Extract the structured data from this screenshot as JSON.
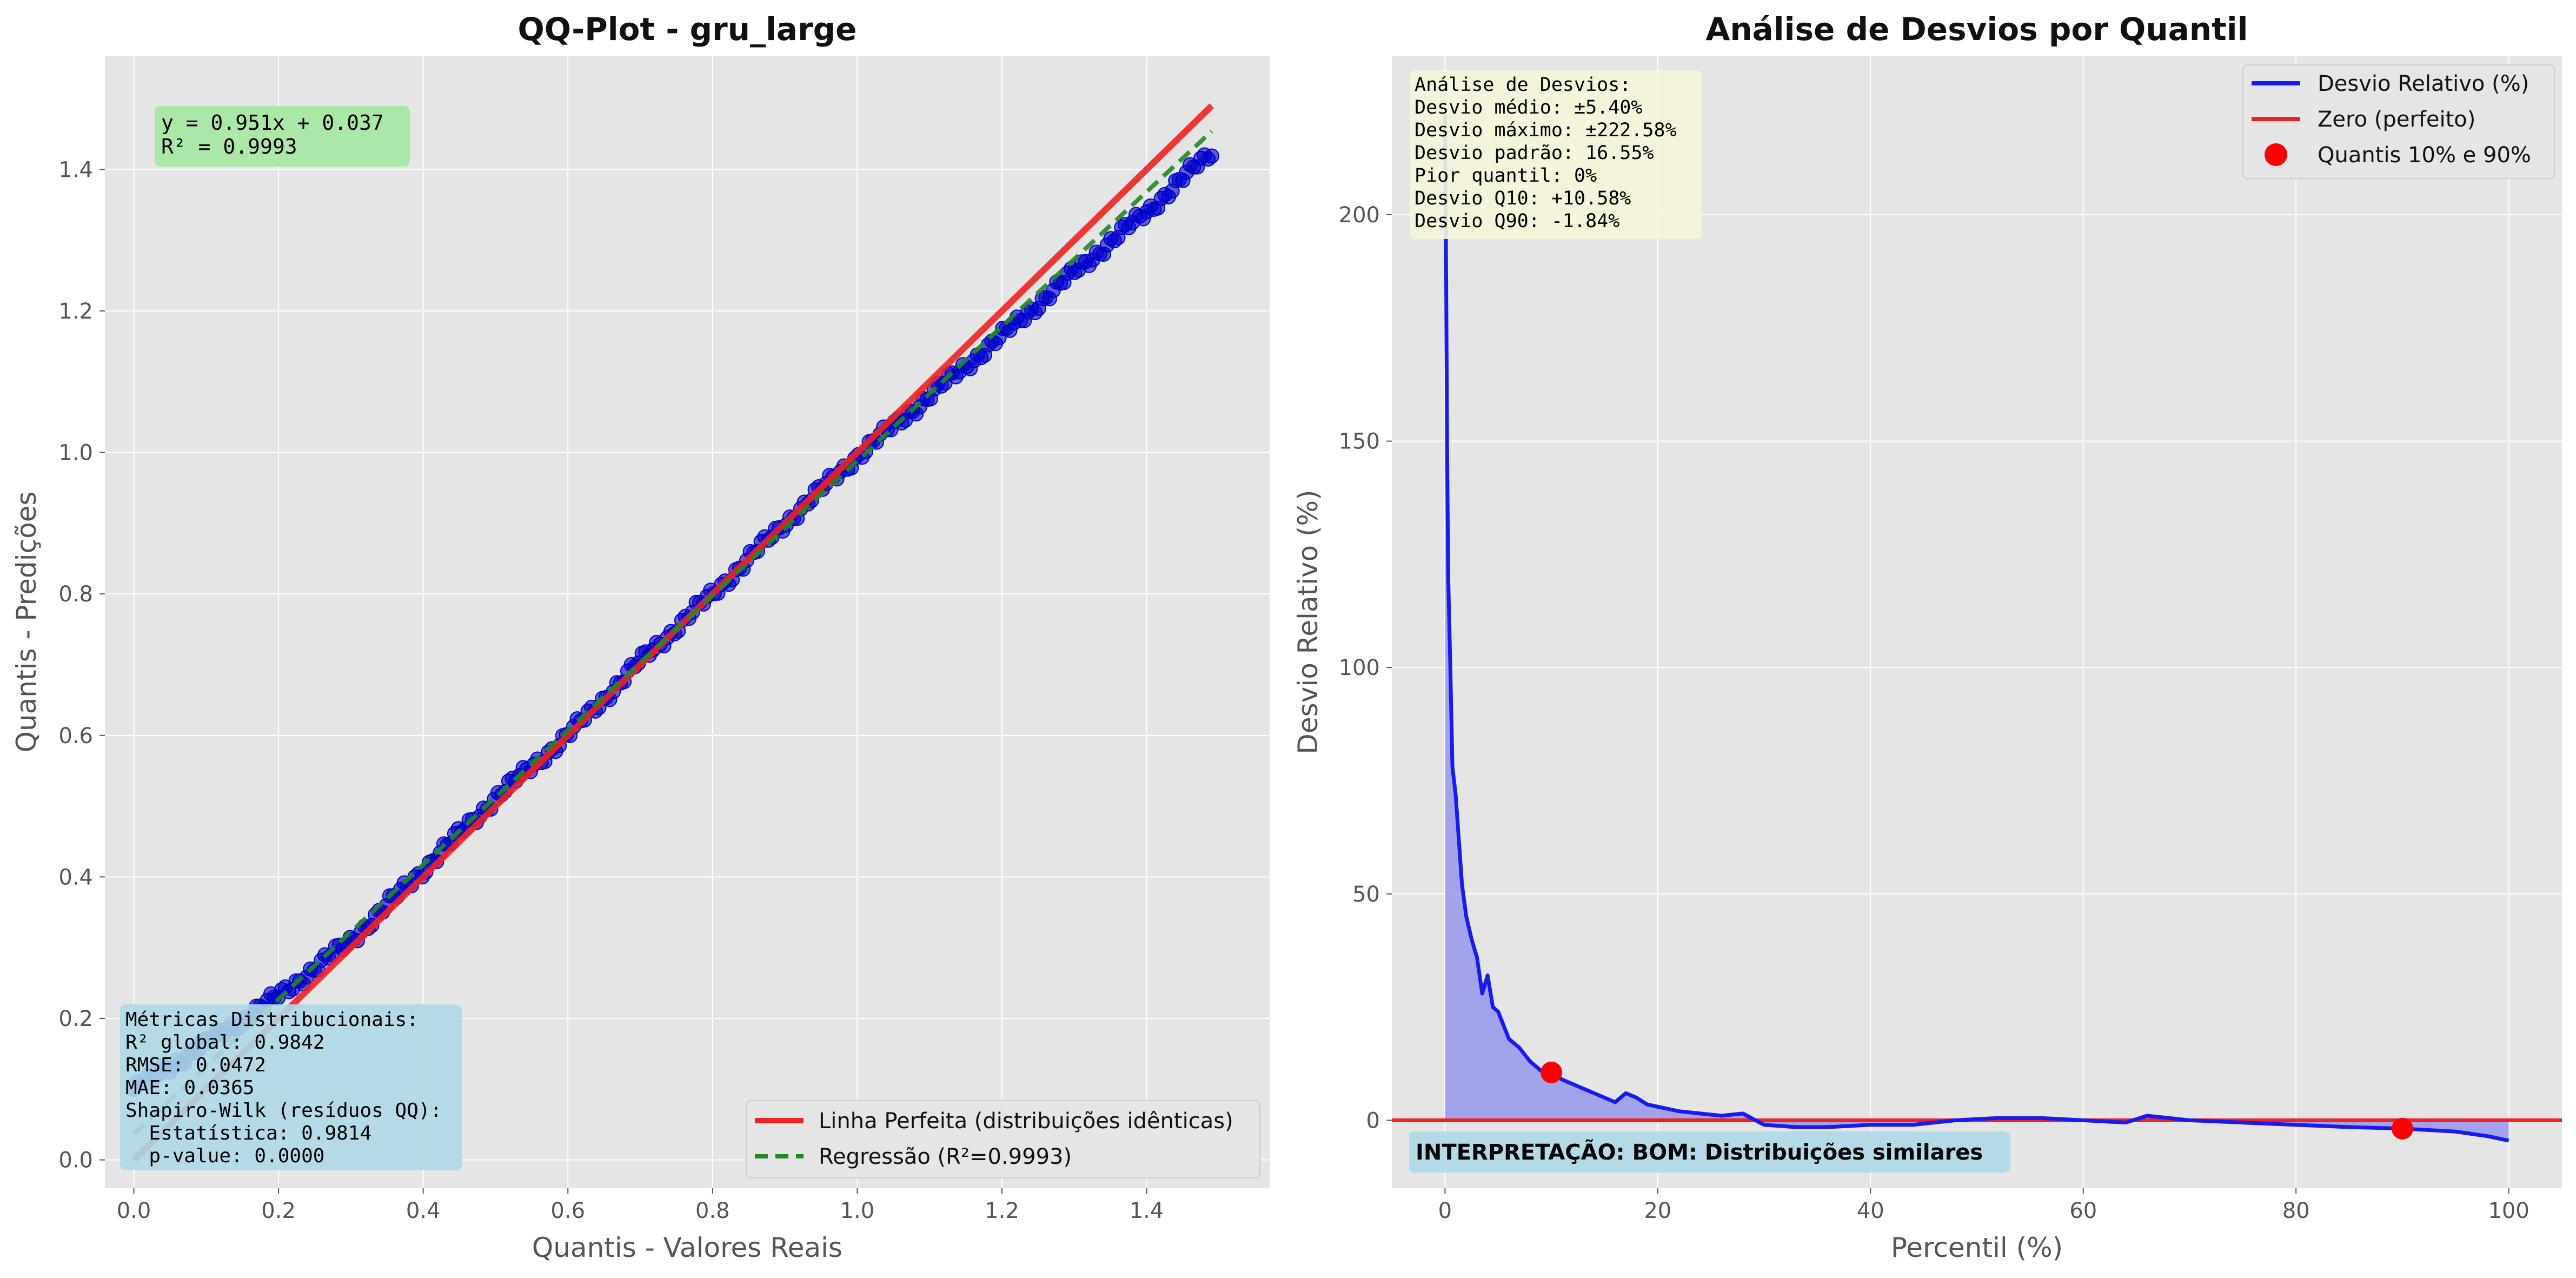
{
  "figure": {
    "background": "#ffffff",
    "axes_background": "#e5e5e5",
    "grid_color": "#ffffff"
  },
  "chart_data": [
    {
      "type": "scatter",
      "title": "QQ-Plot - gru_large",
      "xlabel": "Quantis - Valores Reais",
      "ylabel": "Quantis - Predições",
      "xlim": [
        -0.04,
        1.57
      ],
      "ylim": [
        -0.04,
        1.56
      ],
      "xticks": [
        "0.0",
        "0.2",
        "0.4",
        "0.6",
        "0.8",
        "1.0",
        "1.2",
        "1.4"
      ],
      "yticks": [
        "0.0",
        "0.2",
        "0.4",
        "0.6",
        "0.8",
        "1.0",
        "1.2",
        "1.4"
      ],
      "grid": true,
      "legend_position": "lower-right",
      "points": {
        "color": "#0000cc",
        "x_range": [
          0.0,
          1.49
        ],
        "note_curve": [
          [
            0.0,
            0.1
          ],
          [
            0.1,
            0.165
          ],
          [
            0.2,
            0.232
          ],
          [
            0.3,
            0.31
          ],
          [
            0.4,
            0.41
          ],
          [
            0.5,
            0.512
          ],
          [
            0.6,
            0.6
          ],
          [
            0.7,
            0.705
          ],
          [
            0.8,
            0.8
          ],
          [
            0.9,
            0.9
          ],
          [
            1.0,
            0.995
          ],
          [
            1.1,
            1.08
          ],
          [
            1.2,
            1.165
          ],
          [
            1.3,
            1.255
          ],
          [
            1.4,
            1.34
          ],
          [
            1.49,
            1.425
          ]
        ]
      },
      "series": [
        {
          "name": "Linha Perfeita (distribuições idênticas)",
          "color": "#ee2222",
          "style": "solid",
          "slope": 1.0,
          "intercept": 0.0,
          "x": [
            0.0,
            1.49
          ]
        },
        {
          "name": "Regressão (R²=0.9993)",
          "color": "#228822",
          "style": "dashed",
          "slope": 0.951,
          "intercept": 0.037,
          "x": [
            0.0,
            1.49
          ]
        }
      ],
      "equation_box": {
        "lines": [
          "y = 0.951x + 0.037",
          "R² = 0.9993"
        ],
        "color": "#aae8a8"
      },
      "metrics_box": {
        "lines": [
          "Métricas Distribucionais:",
          "R² global: 0.9842",
          "RMSE: 0.0472",
          "MAE: 0.0365",
          "Shapiro-Wilk (resíduos QQ):",
          "  Estatística: 0.9814",
          "  p-value: 0.0000"
        ],
        "color": "#add8e6"
      }
    },
    {
      "type": "line",
      "title": "Análise de Desvios por Quantil",
      "xlabel": "Percentil (%)",
      "ylabel": "Desvio Relativo (%)",
      "xlim": [
        -5,
        105
      ],
      "ylim": [
        -15,
        235
      ],
      "xticks": [
        "0",
        "20",
        "40",
        "60",
        "80",
        "100"
      ],
      "yticks": [
        "0",
        "50",
        "100",
        "150",
        "200"
      ],
      "grid": true,
      "legend_position": "top-right",
      "series": [
        {
          "name": "Desvio Relativo (%)",
          "color": "#1a1aee",
          "fill_color": "#8888ee",
          "x": [
            0,
            0.1,
            0.2,
            0.3,
            0.5,
            0.7,
            1,
            1.3,
            1.6,
            2,
            2.5,
            3,
            3.5,
            4,
            4.5,
            5,
            6,
            7,
            8,
            9,
            10,
            11,
            12,
            13,
            14,
            15,
            16,
            17,
            18,
            19,
            20,
            22,
            24,
            26,
            28,
            30,
            33,
            36,
            40,
            44,
            48,
            52,
            56,
            60,
            64,
            66,
            70,
            75,
            80,
            85,
            90,
            95,
            98,
            100
          ],
          "y": [
            222,
            190,
            148,
            120,
            100,
            78,
            72,
            62,
            52,
            45,
            40,
            36,
            28,
            32,
            25,
            24,
            18,
            16,
            13,
            11,
            10.6,
            9,
            8,
            7,
            6,
            5,
            4,
            6,
            5,
            3.5,
            3,
            2,
            1.5,
            1,
            1.5,
            -1,
            -1.5,
            -1.5,
            -1,
            -1,
            0,
            0.5,
            0.5,
            0,
            -0.5,
            1,
            0,
            -0.5,
            -1,
            -1.5,
            -1.84,
            -2.5,
            -3.5,
            -4.5
          ]
        },
        {
          "name": "Zero (perfeito)",
          "color": "#ee2222",
          "constant": 0
        }
      ],
      "markers": {
        "name": "Quantis 10% e 90%",
        "color": "#ff0000",
        "points": [
          [
            10,
            10.58
          ],
          [
            90,
            -1.84
          ]
        ]
      },
      "stats_box": {
        "lines": [
          "Análise de Desvios:",
          "Desvio médio: ±5.40%",
          "Desvio máximo: ±222.58%",
          "Desvio padrão: 16.55%",
          "Pior quantil: 0%",
          "Desvio Q10: +10.58%",
          "Desvio Q90: -1.84%"
        ],
        "color": "#f5f5dc"
      },
      "interpretation": {
        "text": "INTERPRETAÇÃO: BOM: Distribuições similares",
        "color": "#add8e6"
      }
    }
  ]
}
